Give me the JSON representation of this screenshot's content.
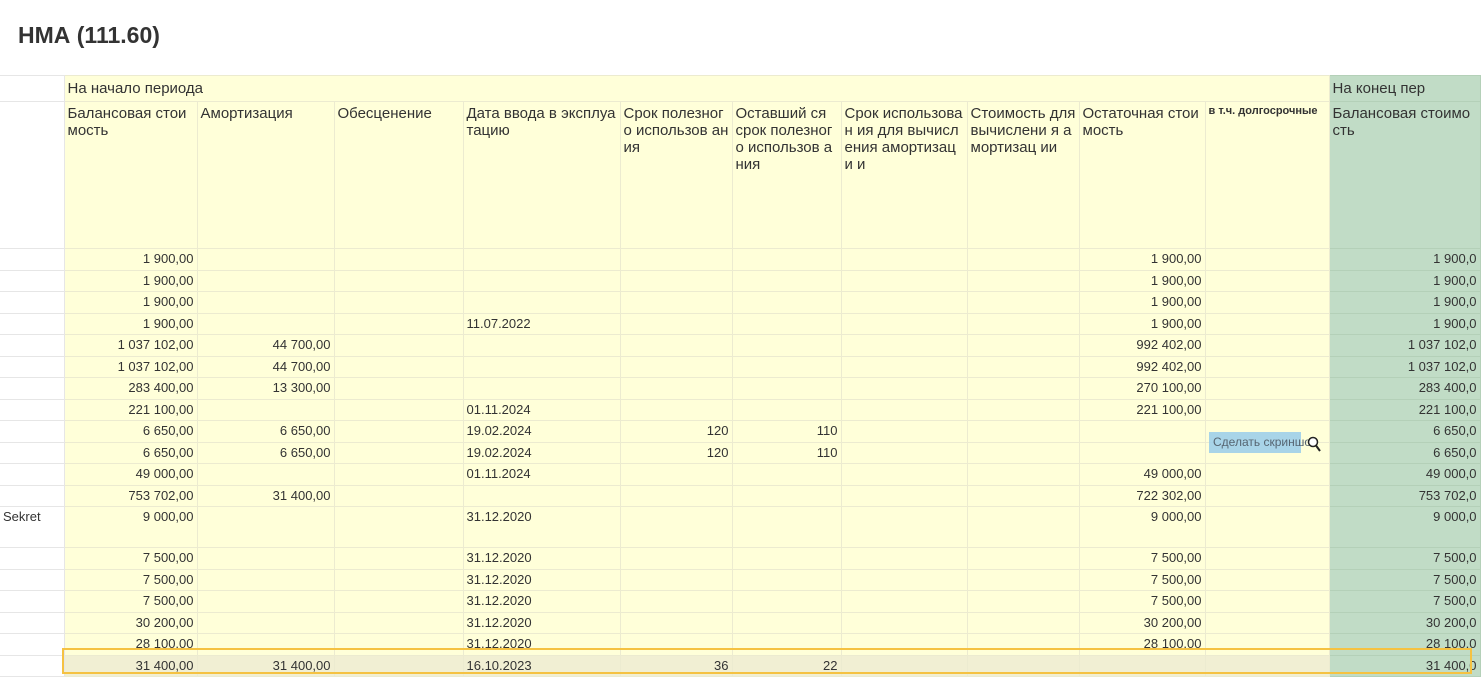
{
  "title": "НМА (111.60)",
  "groups": {
    "start": "На начало периода",
    "end": "На конец пер"
  },
  "headers": [
    "Балансовая стоимость",
    "Амортизация",
    "Обесценение",
    "Дата ввода в эксплуатацию",
    "Срок полезного использов ания",
    "Оставший ся срок полезного использов ания",
    "Срок использован ия для вычисления амортизаци и",
    "Стоимость для вычислени я амортизац ии",
    "Остаточная стоимость",
    "в т.ч. долгосрочные",
    "Балансовая стоимость"
  ],
  "rows": [
    {
      "label": "",
      "cells": [
        "1 900,00",
        "",
        "",
        "",
        "",
        "",
        "",
        "",
        "1 900,00",
        "",
        "1 900,0"
      ]
    },
    {
      "label": "",
      "cells": [
        "1 900,00",
        "",
        "",
        "",
        "",
        "",
        "",
        "",
        "1 900,00",
        "",
        "1 900,0"
      ]
    },
    {
      "label": "",
      "cells": [
        "1 900,00",
        "",
        "",
        "",
        "",
        "",
        "",
        "",
        "1 900,00",
        "",
        "1 900,0"
      ]
    },
    {
      "label": "",
      "cells": [
        "1 900,00",
        "",
        "",
        "11.07.2022",
        "",
        "",
        "",
        "",
        "1 900,00",
        "",
        "1 900,0"
      ]
    },
    {
      "label": "",
      "cells": [
        "1 037 102,00",
        "44 700,00",
        "",
        "",
        "",
        "",
        "",
        "",
        "992 402,00",
        "",
        "1 037 102,0"
      ]
    },
    {
      "label": "",
      "cells": [
        "1 037 102,00",
        "44 700,00",
        "",
        "",
        "",
        "",
        "",
        "",
        "992 402,00",
        "",
        "1 037 102,0"
      ]
    },
    {
      "label": "",
      "cells": [
        "283 400,00",
        "13 300,00",
        "",
        "",
        "",
        "",
        "",
        "",
        "270 100,00",
        "",
        "283 400,0"
      ]
    },
    {
      "label": "",
      "cells": [
        "221 100,00",
        "",
        "",
        "01.11.2024",
        "",
        "",
        "",
        "",
        "221 100,00",
        "",
        "221 100,0"
      ]
    },
    {
      "label": "",
      "cells": [
        "6 650,00",
        "6 650,00",
        "",
        "19.02.2024",
        "120",
        "110",
        "",
        "",
        "",
        "",
        "6 650,0"
      ]
    },
    {
      "label": "",
      "cells": [
        "6 650,00",
        "6 650,00",
        "",
        "19.02.2024",
        "120",
        "110",
        "",
        "",
        "",
        "",
        "6 650,0"
      ]
    },
    {
      "label": "",
      "cells": [
        "49 000,00",
        "",
        "",
        "01.11.2024",
        "",
        "",
        "",
        "",
        "49 000,00",
        "",
        "49 000,0"
      ]
    },
    {
      "label": "",
      "cells": [
        "753 702,00",
        "31 400,00",
        "",
        "",
        "",
        "",
        "",
        "",
        "722 302,00",
        "",
        "753 702,0"
      ]
    },
    {
      "label": "Sekret",
      "tall": true,
      "cells": [
        "9 000,00",
        "",
        "",
        "31.12.2020",
        "",
        "",
        "",
        "",
        "9 000,00",
        "",
        "9 000,0"
      ]
    },
    {
      "label": "",
      "cells": [
        "7 500,00",
        "",
        "",
        "31.12.2020",
        "",
        "",
        "",
        "",
        "7 500,00",
        "",
        "7 500,0"
      ]
    },
    {
      "label": "",
      "cells": [
        "7 500,00",
        "",
        "",
        "31.12.2020",
        "",
        "",
        "",
        "",
        "7 500,00",
        "",
        "7 500,0"
      ]
    },
    {
      "label": "",
      "cells": [
        "7 500,00",
        "",
        "",
        "31.12.2020",
        "",
        "",
        "",
        "",
        "7 500,00",
        "",
        "7 500,0"
      ]
    },
    {
      "label": "",
      "cells": [
        "30 200,00",
        "",
        "",
        "31.12.2020",
        "",
        "",
        "",
        "",
        "30 200,00",
        "",
        "30 200,0"
      ]
    },
    {
      "label": "",
      "cells": [
        "28 100,00",
        "",
        "",
        "31.12.2020",
        "",
        "",
        "",
        "",
        "28 100,00",
        "",
        "28 100,0"
      ]
    },
    {
      "label": "",
      "selected": true,
      "cells": [
        "31 400,00",
        "31 400,00",
        "",
        "16.10.2023",
        "36",
        "22",
        "",
        "",
        "",
        "",
        "31 400,0"
      ]
    }
  ],
  "tooltip": "Сделать скриншот",
  "colors": {
    "yellow": "#ffffd9",
    "green": "#c1dcc6",
    "selection": "#f5c242"
  }
}
